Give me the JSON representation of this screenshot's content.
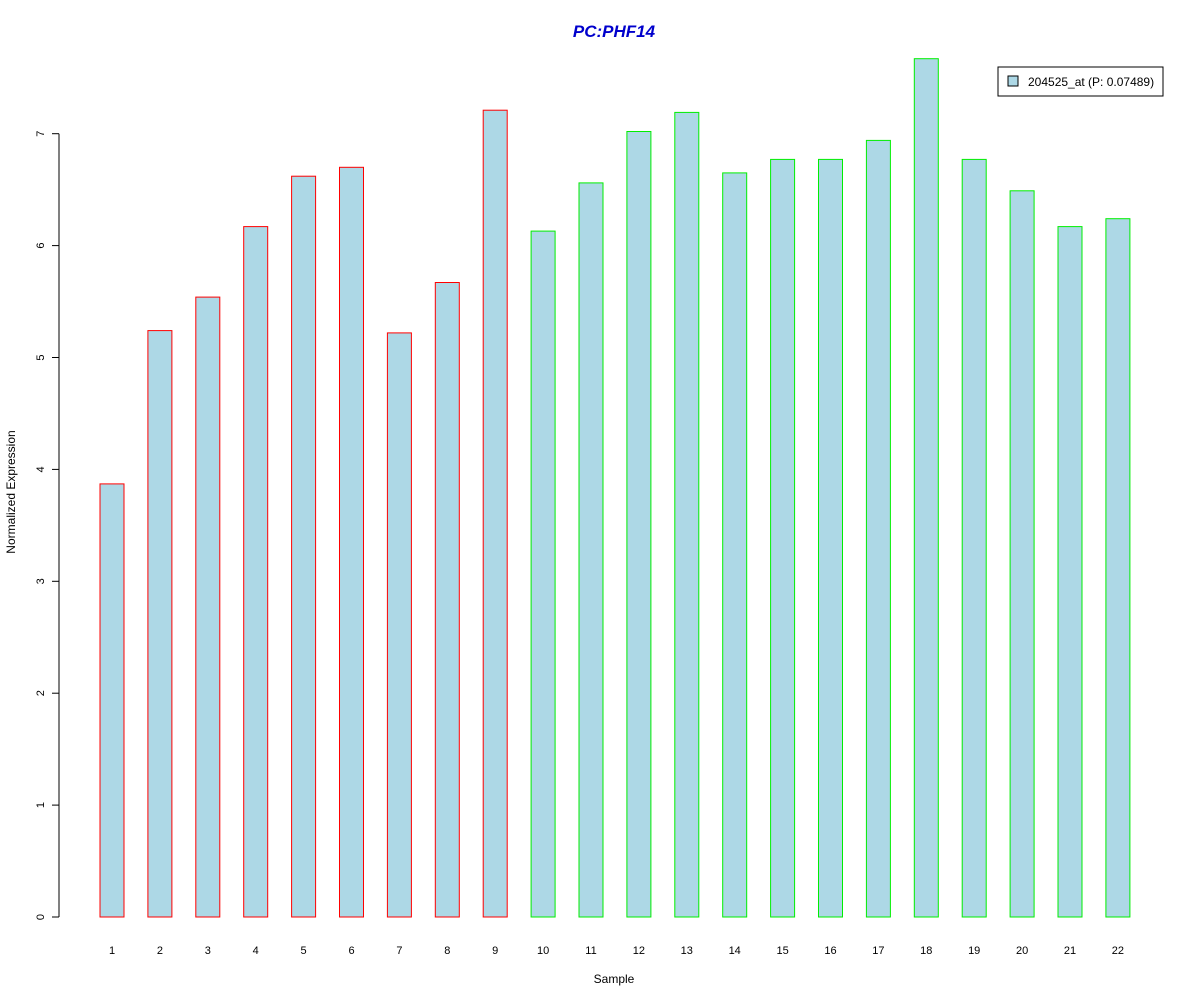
{
  "chart_data": {
    "type": "bar",
    "title": "PC:PHF14",
    "xlabel": "Sample",
    "ylabel": "Normalized Expression",
    "ylim": [
      0,
      7.7
    ],
    "y_ticks": [
      "0",
      "1",
      "2",
      "3",
      "4",
      "5",
      "6",
      "7"
    ],
    "categories": [
      "1",
      "2",
      "3",
      "4",
      "5",
      "6",
      "7",
      "8",
      "9",
      "10",
      "11",
      "12",
      "13",
      "14",
      "15",
      "16",
      "17",
      "18",
      "19",
      "20",
      "21",
      "22"
    ],
    "series": [
      {
        "name": "204525_at (P: 0.07489)",
        "values": [
          3.87,
          5.24,
          5.54,
          6.17,
          6.62,
          6.7,
          5.22,
          5.67,
          7.21,
          6.13,
          6.56,
          7.02,
          7.19,
          6.65,
          6.77,
          6.77,
          6.94,
          7.67,
          6.77,
          6.49,
          6.17,
          6.24
        ]
      }
    ],
    "groups": [
      "1",
      "1",
      "1",
      "1",
      "1",
      "1",
      "1",
      "1",
      "1",
      "2",
      "2",
      "2",
      "2",
      "2",
      "2",
      "2",
      "2",
      "2",
      "2",
      "2",
      "2",
      "2"
    ],
    "legend_position": "top-right",
    "grid": false,
    "colors": {
      "fill": "#add8e6",
      "group_1_border": "#ff0000",
      "group_2_border": "#00ee00",
      "title": "#0000cc"
    }
  }
}
